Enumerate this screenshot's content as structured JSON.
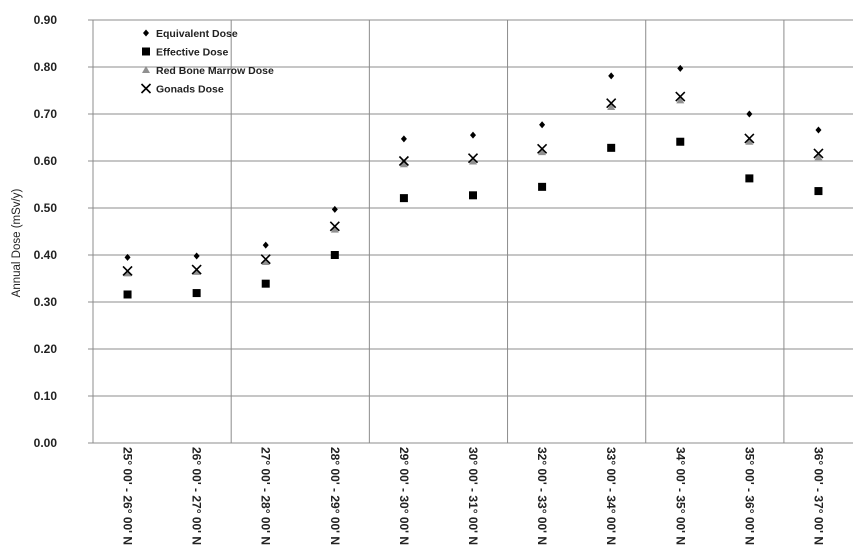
{
  "chart_data": {
    "type": "scatter",
    "ylabel": "Annual Dose (mSv/y)",
    "ylim": [
      0,
      0.9
    ],
    "yticks": [
      "0.00",
      "0.10",
      "0.20",
      "0.30",
      "0.40",
      "0.50",
      "0.60",
      "0.70",
      "0.80",
      "0.90"
    ],
    "grid": true,
    "legend": "top-left",
    "categories": [
      "25° 00' - 26° 00' N",
      "26° 00' - 27° 00' N",
      "27° 00' - 28° 00' N",
      "28° 00' - 29° 00' N",
      "29° 00' - 30° 00' N",
      "30° 00' - 31° 00' N",
      "32° 00' - 33° 00' N",
      "33° 00' - 34° 00' N",
      "34° 00' - 35° 00' N",
      "35° 00' - 36° 00' N",
      "36° 00' - 37° 00' N"
    ],
    "series": [
      {
        "name": "Equivalent Dose",
        "marker": "diamond",
        "color": "#000000",
        "values": [
          0.395,
          0.398,
          0.421,
          0.497,
          0.647,
          0.655,
          0.677,
          0.781,
          0.797,
          0.7,
          0.666
        ]
      },
      {
        "name": "Effective Dose",
        "marker": "square",
        "color": "#000000",
        "values": [
          0.316,
          0.319,
          0.339,
          0.4,
          0.521,
          0.527,
          0.545,
          0.628,
          0.641,
          0.563,
          0.536
        ]
      },
      {
        "name": "Red Bone Marrow Dose",
        "marker": "triangle",
        "color": "#909090",
        "values": [
          0.361,
          0.364,
          0.385,
          0.454,
          0.593,
          0.599,
          0.619,
          0.715,
          0.729,
          0.641,
          0.608
        ]
      },
      {
        "name": "Gonads Dose",
        "marker": "x",
        "color": "#000000",
        "values": [
          0.366,
          0.369,
          0.391,
          0.461,
          0.6,
          0.606,
          0.626,
          0.723,
          0.737,
          0.648,
          0.616
        ]
      }
    ]
  }
}
